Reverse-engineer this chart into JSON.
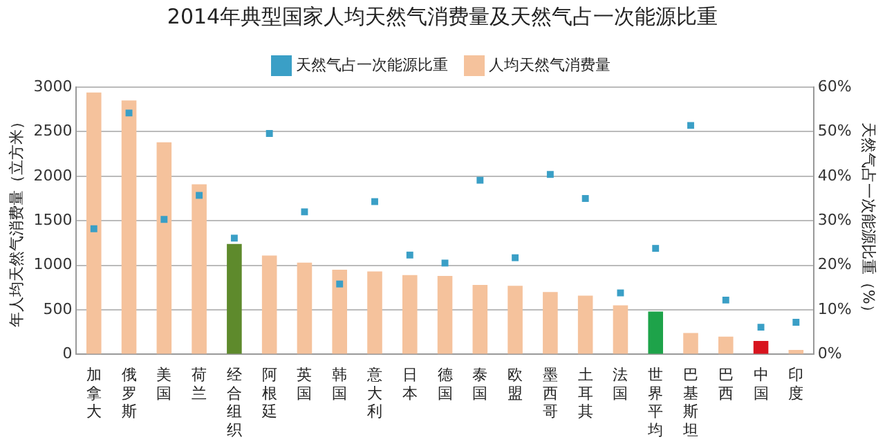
{
  "chart_data": {
    "type": "bar",
    "title": "2014年典型国家人均天然气消费量及天然气占一次能源比重",
    "ylabel": "年人均天然气消费量（立方米）",
    "y2label": "天然气占一次能源比重（%）",
    "categories": [
      "加拿大",
      "俄罗斯",
      "美国",
      "荷兰",
      "经合组织",
      "阿根廷",
      "英国",
      "韩国",
      "意大利",
      "日本",
      "德国",
      "泰国",
      "欧盟",
      "墨西哥",
      "土耳其",
      "法国",
      "世界平均",
      "巴基斯坦",
      "巴西",
      "中国",
      "印度"
    ],
    "series": [
      {
        "name": "人均天然气消费量",
        "color": "#f5c29c",
        "colors": [
          "#f5c29c",
          "#f5c29c",
          "#f5c29c",
          "#f5c29c",
          "#5e8a2c",
          "#f5c29c",
          "#f5c29c",
          "#f5c29c",
          "#f5c29c",
          "#f5c29c",
          "#f5c29c",
          "#f5c29c",
          "#f5c29c",
          "#f5c29c",
          "#f5c29c",
          "#f5c29c",
          "#1ea34a",
          "#f5c29c",
          "#f5c29c",
          "#d8141e",
          "#f5c29c"
        ],
        "values": [
          2940,
          2850,
          2380,
          1910,
          1240,
          1110,
          1030,
          950,
          930,
          890,
          880,
          780,
          770,
          700,
          660,
          550,
          480,
          240,
          200,
          150,
          50
        ]
      },
      {
        "name": "天然气占一次能源比重",
        "type": "scatter",
        "axis": "y2",
        "color": "#3a9fc6",
        "values": [
          28.2,
          54.2,
          30.3,
          35.7,
          26.1,
          49.6,
          32.0,
          15.8,
          34.3,
          22.3,
          20.5,
          39.1,
          21.7,
          40.4,
          35.0,
          13.8,
          23.8,
          51.4,
          12.2,
          6.1,
          7.2
        ]
      }
    ],
    "ylim": [
      0,
      3000
    ],
    "yticks": [
      0,
      500,
      1000,
      1500,
      2000,
      2500,
      3000
    ],
    "y2lim": [
      0,
      60
    ],
    "y2ticks": [
      {
        "value": 0,
        "label": "0%"
      },
      {
        "value": 10,
        "label": "10%"
      },
      {
        "value": 20,
        "label": "20%"
      },
      {
        "value": 30,
        "label": "30%"
      },
      {
        "value": 40,
        "label": "40%"
      },
      {
        "value": 50,
        "label": "50%"
      },
      {
        "value": 60,
        "label": "60%"
      }
    ],
    "grid": "y",
    "legend": "top",
    "marker": "square"
  }
}
